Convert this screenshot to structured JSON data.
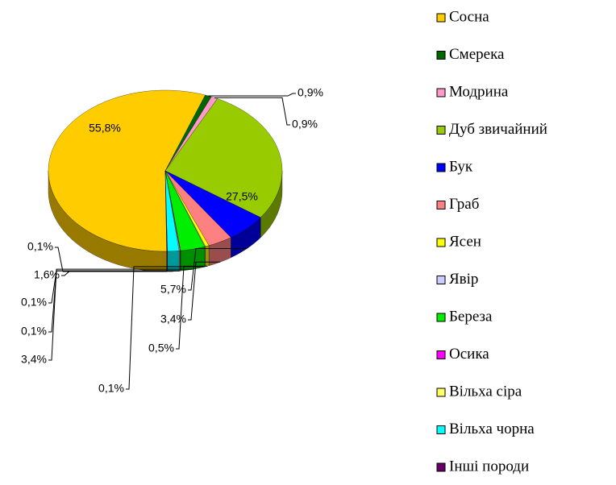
{
  "chart_data": {
    "type": "pie",
    "categories": [
      "Сосна",
      "Смерека",
      "Модрина",
      "Дуб звичайний",
      "Бук",
      "Граб",
      "Ясен",
      "Явір",
      "Береза",
      "Осика",
      "Вільха сіра",
      "Вільха чорна",
      "Інші породи"
    ],
    "values": [
      55.8,
      0.9,
      0.9,
      27.5,
      5.7,
      3.4,
      0.5,
      0.1,
      3.4,
      0.1,
      0.1,
      1.6,
      0.1
    ],
    "value_labels": [
      "55,8%",
      "0,9%",
      "0,9%",
      "27,5%",
      "5,7%",
      "3,4%",
      "0,5%",
      "0,1%",
      "3,4%",
      "0,1%",
      "0,1%",
      "1,6%",
      "0,1%"
    ],
    "colors": [
      "#FFCC00",
      "#006600",
      "#FF99CC",
      "#99CC00",
      "#0000FF",
      "#FF8080",
      "#FFFF00",
      "#CCCCFF",
      "#00EE00",
      "#FF00FF",
      "#FFFF66",
      "#00FFFF",
      "#660066"
    ],
    "legend": "right"
  }
}
